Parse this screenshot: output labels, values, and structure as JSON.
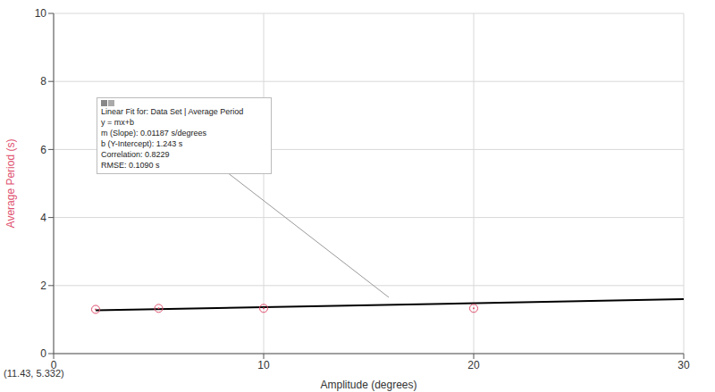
{
  "chart_data": {
    "type": "scatter",
    "x_label": "Amplitude (degrees)",
    "y_label": "Average Period (s)",
    "x": [
      2,
      5,
      10,
      20
    ],
    "values": [
      1.3,
      1.33,
      1.33,
      1.33
    ],
    "color": "#e0506e",
    "marker": "circle",
    "fit": {
      "x": [
        2,
        30
      ],
      "values": [
        1.27,
        1.6
      ],
      "color": "#000000"
    },
    "xlim": [
      0,
      30
    ],
    "xticks": [
      0,
      10,
      20,
      30
    ],
    "ylim": [
      0,
      10
    ],
    "yticks": [
      0,
      2,
      4,
      6,
      8,
      10
    ],
    "grid": true,
    "annotation": [
      "Linear Fit for: Data Set | Average Period",
      "y = mx+b",
      "m (Slope): 0.01187 s/degrees",
      "b (Y-Intercept): 1.243 s",
      "Correlation: 0.8229",
      "RMSE: 0.1090 s"
    ],
    "cursor_label": "(11.43, 5.332)"
  }
}
